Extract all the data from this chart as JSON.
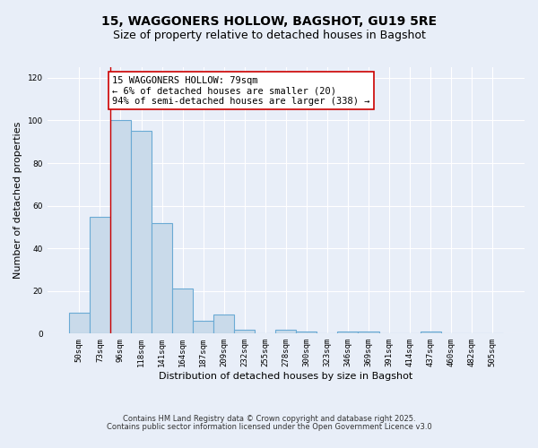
{
  "title": "15, WAGGONERS HOLLOW, BAGSHOT, GU19 5RE",
  "subtitle": "Size of property relative to detached houses in Bagshot",
  "xlabel": "Distribution of detached houses by size in Bagshot",
  "ylabel": "Number of detached properties",
  "bar_labels": [
    "50sqm",
    "73sqm",
    "96sqm",
    "118sqm",
    "141sqm",
    "164sqm",
    "187sqm",
    "209sqm",
    "232sqm",
    "255sqm",
    "278sqm",
    "300sqm",
    "323sqm",
    "346sqm",
    "369sqm",
    "391sqm",
    "414sqm",
    "437sqm",
    "460sqm",
    "482sqm",
    "505sqm"
  ],
  "bar_values": [
    10,
    55,
    100,
    95,
    52,
    21,
    6,
    9,
    2,
    0,
    2,
    1,
    0,
    1,
    1,
    0,
    0,
    1,
    0,
    0,
    0
  ],
  "bar_color": "#c9daea",
  "bar_edge_color": "#6aaad4",
  "bar_linewidth": 0.8,
  "red_line_x": 1.5,
  "annotation_text": "15 WAGGONERS HOLLOW: 79sqm\n← 6% of detached houses are smaller (20)\n94% of semi-detached houses are larger (338) →",
  "annotation_box_color": "#ffffff",
  "annotation_box_edge": "#cc0000",
  "ylim": [
    0,
    125
  ],
  "yticks": [
    0,
    20,
    40,
    60,
    80,
    100,
    120
  ],
  "bg_color": "#e8eef8",
  "plot_bg_color": "#e8eef8",
  "footer1": "Contains HM Land Registry data © Crown copyright and database right 2025.",
  "footer2": "Contains public sector information licensed under the Open Government Licence v3.0",
  "red_line_color": "#cc0000",
  "title_fontsize": 10,
  "subtitle_fontsize": 9,
  "label_fontsize": 8,
  "tick_fontsize": 6.5,
  "annot_fontsize": 7.5,
  "footer_fontsize": 6
}
